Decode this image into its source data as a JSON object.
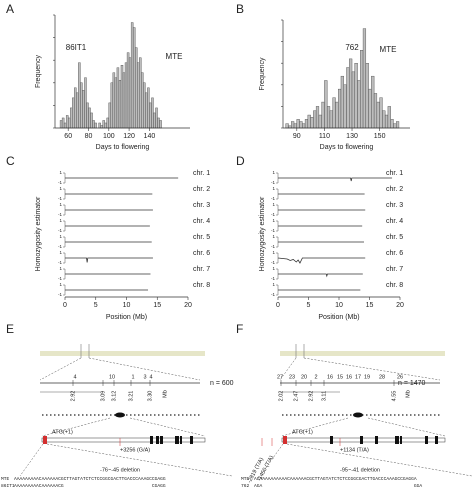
{
  "panel_labels": [
    "A",
    "B",
    "C",
    "D",
    "E",
    "F"
  ],
  "chart_data": [
    {
      "type": "histogram",
      "xlabel": "Days to flowering",
      "ylabel": "Frequency",
      "annotations": [
        "86IT1",
        "MTE"
      ],
      "bins": [
        52,
        54,
        56,
        58,
        60,
        62,
        64,
        66,
        68,
        70,
        72,
        74,
        76,
        78,
        80,
        82,
        84,
        86,
        88,
        90,
        92,
        94,
        96,
        98,
        100,
        102,
        104,
        106,
        108,
        110,
        112,
        114,
        116,
        118,
        120,
        122,
        124,
        126,
        128,
        130,
        132,
        134,
        136,
        138,
        140,
        142,
        144,
        146,
        148,
        150,
        152
      ],
      "values": [
        3,
        4,
        2,
        5,
        4,
        8,
        12,
        16,
        14,
        26,
        18,
        15,
        20,
        10,
        8,
        6,
        3,
        2,
        0,
        2,
        1,
        3,
        2,
        4,
        10,
        18,
        22,
        20,
        24,
        19,
        25,
        22,
        26,
        30,
        28,
        42,
        40,
        32,
        26,
        28,
        22,
        18,
        14,
        16,
        10,
        12,
        6,
        8,
        4,
        3
      ],
      "color": "#bdbdbd",
      "xlim": [
        47,
        180
      ],
      "ylim": [
        0,
        45
      ],
      "xticks": [
        60,
        80,
        100,
        120,
        140
      ]
    },
    {
      "type": "histogram",
      "xlabel": "Days to flowering",
      "ylabel": "Frequency",
      "annotations": [
        "762",
        "MTE"
      ],
      "bins": [
        82,
        84,
        86,
        88,
        90,
        92,
        94,
        96,
        98,
        100,
        102,
        104,
        106,
        108,
        110,
        112,
        114,
        116,
        118,
        120,
        122,
        124,
        126,
        128,
        130,
        132,
        134,
        136,
        138,
        140,
        142,
        144,
        146,
        148,
        150,
        152,
        154,
        156,
        158,
        160,
        162,
        164
      ],
      "values": [
        2,
        1,
        3,
        2,
        4,
        3,
        2,
        4,
        6,
        5,
        8,
        10,
        6,
        12,
        22,
        10,
        8,
        14,
        12,
        18,
        24,
        20,
        28,
        32,
        26,
        30,
        22,
        36,
        46,
        30,
        18,
        24,
        16,
        12,
        14,
        8,
        6,
        10,
        4,
        2,
        3
      ],
      "color": "#bdbdbd",
      "xlim": [
        80,
        172
      ],
      "ylim": [
        0,
        50
      ],
      "xticks": [
        90,
        110,
        130,
        150
      ]
    },
    {
      "type": "line",
      "xlabel": "Position (Mb)",
      "ylabel": "Homozygosity estimator",
      "xlim": [
        0,
        20
      ],
      "xticks": [
        0,
        5,
        10,
        15,
        20
      ],
      "ylim": [
        -1,
        1
      ],
      "yticks": [
        -1,
        1
      ],
      "series": [
        {
          "name": "chr. 1",
          "color": "#333",
          "x": [
            0,
            18.4
          ],
          "values": [
            0,
            0
          ]
        },
        {
          "name": "chr. 2",
          "color": "#333",
          "x": [
            0,
            14.2
          ],
          "values": [
            0,
            0
          ]
        },
        {
          "name": "chr. 3",
          "color": "#333",
          "x": [
            0,
            14.3
          ],
          "values": [
            0,
            0
          ]
        },
        {
          "name": "chr. 4",
          "color": "#333",
          "x": [
            0,
            13.8
          ],
          "values": [
            0,
            0
          ]
        },
        {
          "name": "chr. 5",
          "color": "#333",
          "x": [
            0,
            14.1
          ],
          "values": [
            0,
            0
          ]
        },
        {
          "name": "chr. 6",
          "color": "#333",
          "x": [
            0,
            3.5,
            3.6,
            3.7,
            14.3
          ],
          "values": [
            0,
            0,
            -0.9,
            0,
            0
          ]
        },
        {
          "name": "chr. 7",
          "color": "#333",
          "x": [
            0,
            13.9
          ],
          "values": [
            0,
            0
          ]
        },
        {
          "name": "chr. 8",
          "color": "#333",
          "x": [
            0,
            13.5
          ],
          "values": [
            0,
            0
          ]
        }
      ]
    },
    {
      "type": "line",
      "xlabel": "Position (Mb)",
      "ylabel": "Homozygosity estimator",
      "xlim": [
        0,
        20
      ],
      "xticks": [
        0,
        5,
        10,
        15,
        20
      ],
      "ylim": [
        -1,
        1
      ],
      "yticks": [
        -1,
        1
      ],
      "series": [
        {
          "name": "chr. 1",
          "color": "#333",
          "x": [
            0,
            11.9,
            12,
            12.1,
            18.7
          ],
          "values": [
            0,
            0,
            -0.6,
            0,
            0
          ]
        },
        {
          "name": "chr. 2",
          "color": "#333",
          "x": [
            0,
            14.2
          ],
          "values": [
            0,
            0
          ]
        },
        {
          "name": "chr. 3",
          "color": "#333",
          "x": [
            0,
            14.3
          ],
          "values": [
            0,
            0
          ]
        },
        {
          "name": "chr. 4",
          "color": "#333",
          "x": [
            0,
            13.8
          ],
          "values": [
            0,
            0
          ]
        },
        {
          "name": "chr. 5",
          "color": "#333",
          "x": [
            0,
            14.1
          ],
          "values": [
            0,
            0
          ]
        },
        {
          "name": "chr. 6",
          "color": "#333",
          "x": [
            0,
            1.5,
            2,
            2.5,
            3,
            3.3,
            3.6,
            4,
            14.3
          ],
          "values": [
            0,
            -0.2,
            -0.5,
            -0.3,
            -0.8,
            -0.4,
            -1,
            0,
            0
          ]
        },
        {
          "name": "chr. 7",
          "color": "#333",
          "x": [
            0,
            7.9,
            8,
            8.1,
            13.9
          ],
          "values": [
            0,
            0,
            -0.4,
            0,
            0
          ]
        },
        {
          "name": "chr. 8",
          "color": "#333",
          "x": [
            0,
            13.5
          ],
          "values": [
            0,
            0
          ]
        }
      ]
    }
  ],
  "maps": [
    {
      "counts": [
        4,
        10,
        1,
        3,
        4
      ],
      "positions": [
        "2.92",
        "3.09",
        "3.12",
        "3.21",
        "3.30"
      ],
      "unit": "Mb",
      "n": "n = 600",
      "atg": "ATG(+1)",
      "snps": [
        "+3256 (G/A)"
      ],
      "deletion": "-76~-45 deletion",
      "sequences": [
        {
          "name": "MTE",
          "seq": "AAAAAAAAACAAAAAACGCTTAGTATCTCTCCGGCGACTTGACCCAAAGCCGAGG"
        },
        {
          "name": "86IT1",
          "seq": "AAAAAAAAACAAAAAACG                                CGAGG"
        }
      ]
    },
    {
      "counts": [
        27,
        23,
        20,
        2,
        16,
        15,
        16,
        17,
        19,
        28,
        26
      ],
      "positions": [
        "2.02",
        "2.47",
        "2.92",
        "3.11",
        "4.55"
      ],
      "unit": "Mb",
      "n": "n = 1470",
      "atg": "ATG(+1)",
      "snps": [
        "+1134 (T/A)",
        "-2819 (T/A)",
        "-1450 (T/A)"
      ],
      "deletion": "-95~-41 deletion",
      "sequences": [
        {
          "name": "MTE",
          "seq": "AGAAAAAAAAAACAAAAAACGCTTAGTATCTCTCCGGCGACTTGACCCAAAGCCGAGGA"
        },
        {
          "name": "762",
          "seq": "AGA                                                       GGA"
        }
      ]
    }
  ]
}
